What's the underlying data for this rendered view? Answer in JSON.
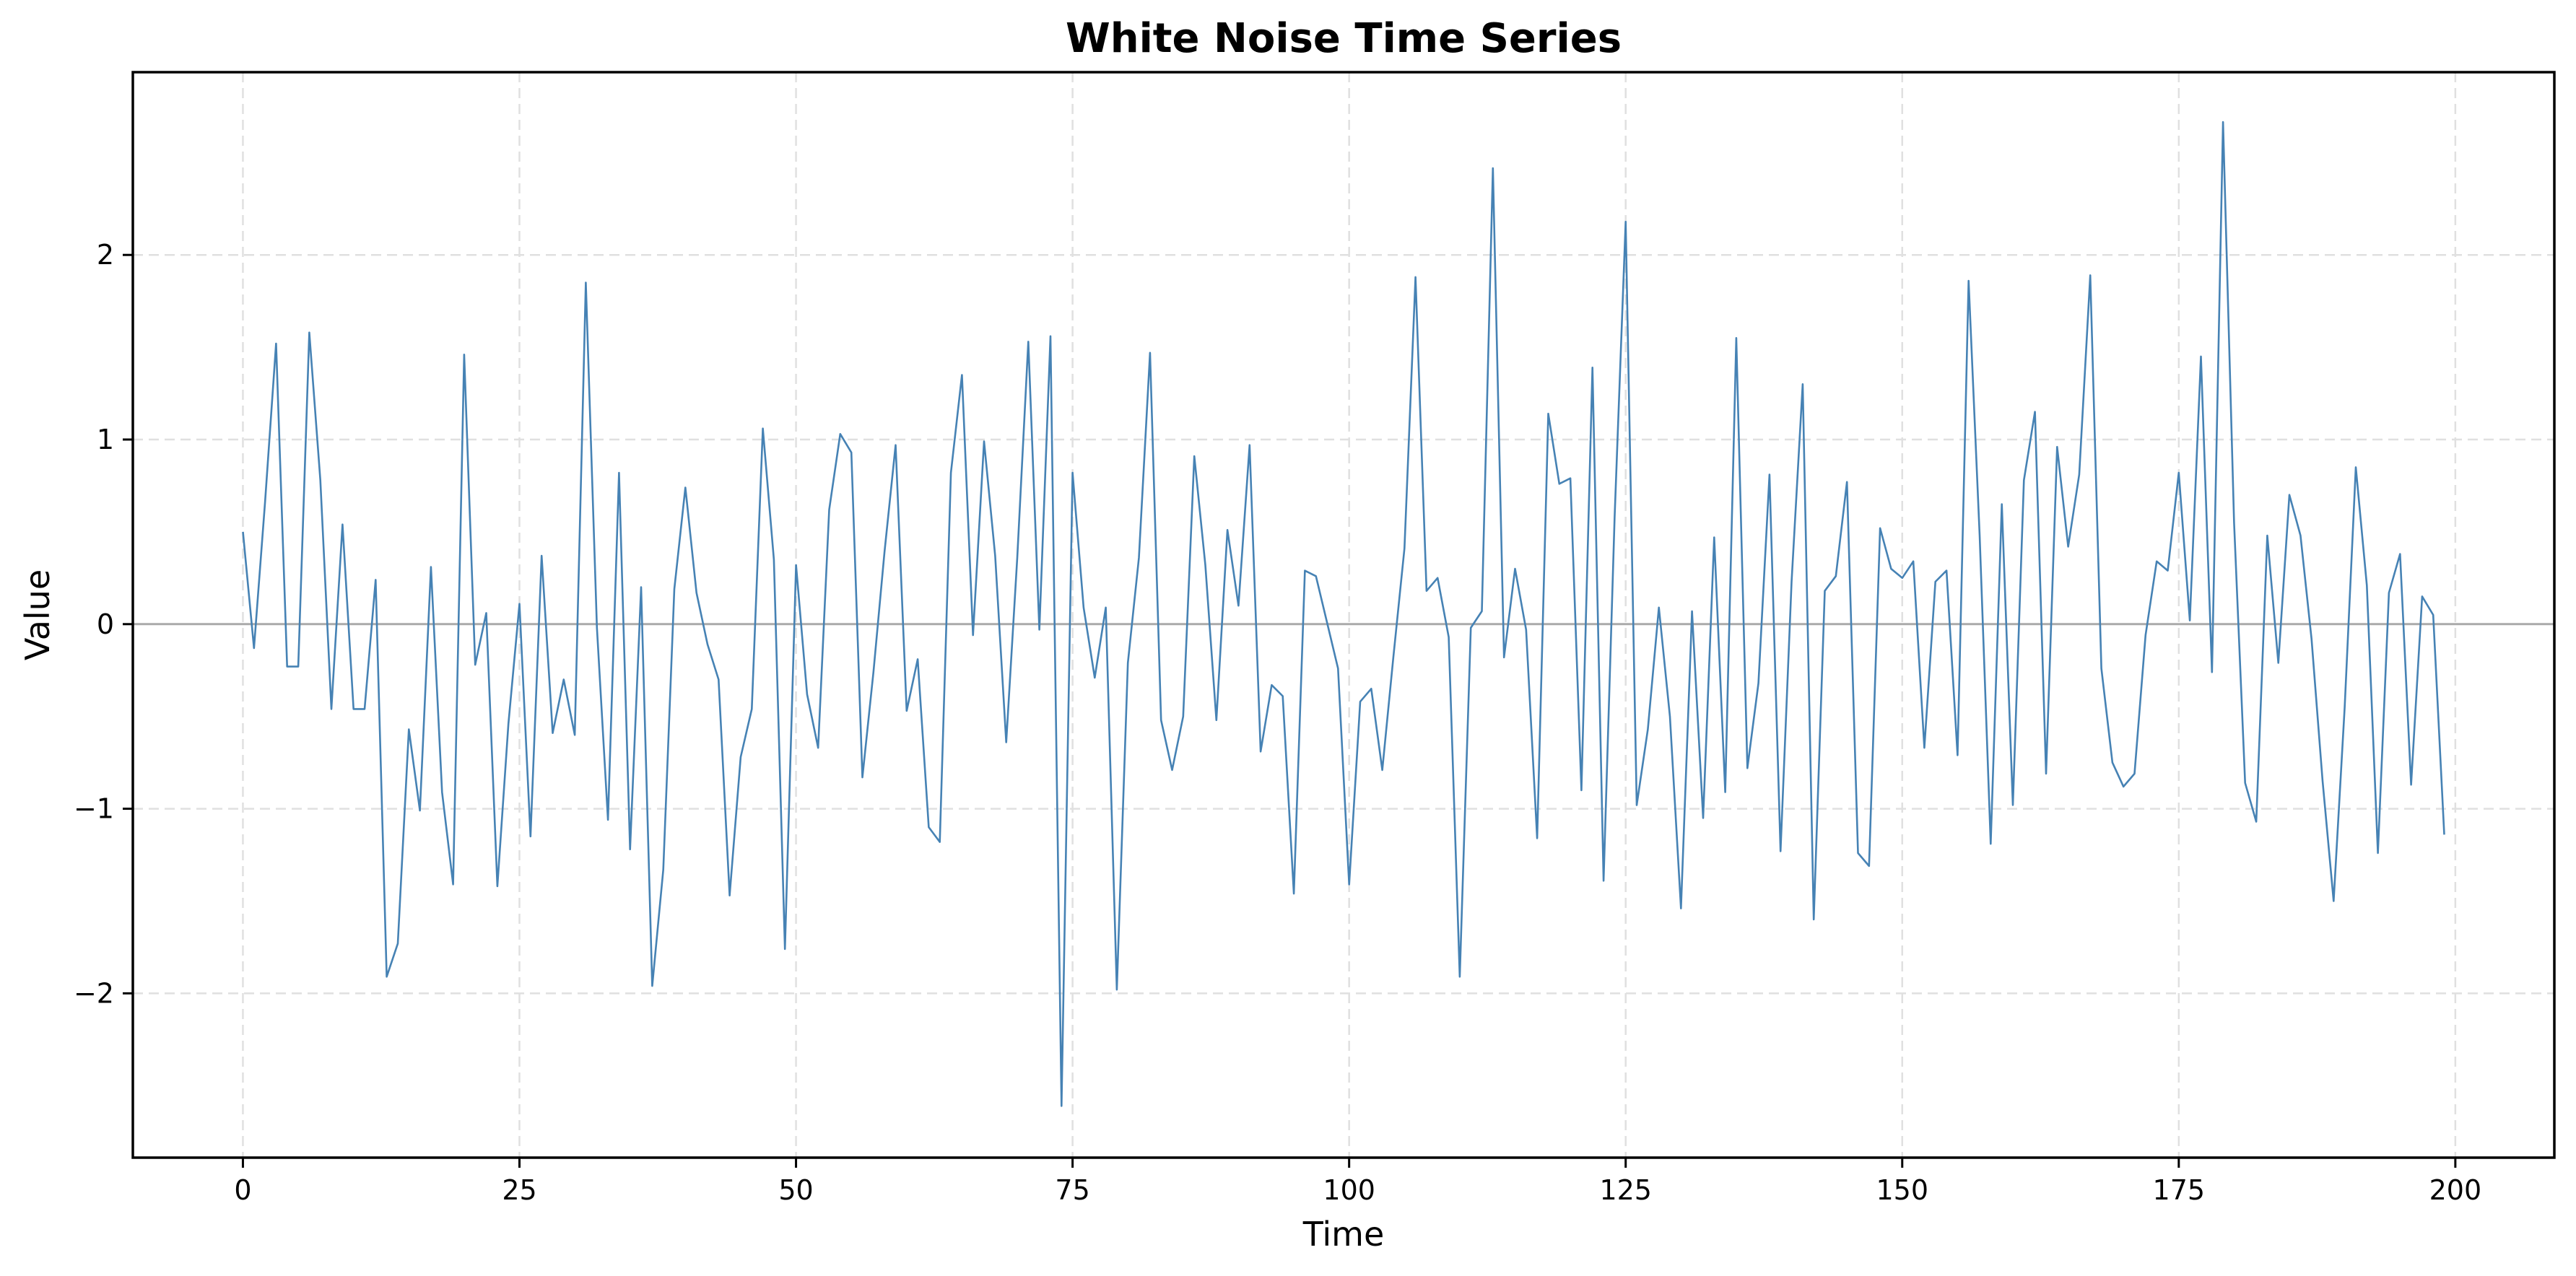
{
  "chart_data": {
    "type": "line",
    "title": "White Noise Time Series",
    "xlabel": "Time",
    "ylabel": "Value",
    "xlim": [
      -9.95,
      208.95
    ],
    "ylim": [
      -2.89,
      2.99
    ],
    "xticks": [
      0,
      25,
      50,
      75,
      100,
      125,
      150,
      175,
      200
    ],
    "yticks": [
      -2,
      -1,
      0,
      1,
      2
    ],
    "ytick_labels": [
      "−2",
      "−1",
      "0",
      "1",
      "2"
    ],
    "xtick_labels": [
      "0",
      "25",
      "50",
      "75",
      "100",
      "125",
      "150",
      "175",
      "200"
    ],
    "grid": true,
    "grid_style": "dashed",
    "reference_line": {
      "y": 0,
      "color": "#aaaaaa"
    },
    "legend": null,
    "line_color": "#4682b4",
    "series": [
      {
        "name": "White Noise",
        "x_start": 0,
        "x_step": 1,
        "values": [
          0.5,
          -0.13,
          0.66,
          1.52,
          -0.23,
          -0.23,
          1.58,
          0.78,
          -0.46,
          0.54,
          -0.46,
          -0.46,
          0.24,
          -1.91,
          -1.73,
          -0.57,
          -1.01,
          0.31,
          -0.91,
          -1.41,
          1.46,
          -0.22,
          0.06,
          -1.42,
          -0.54,
          0.11,
          -1.15,
          0.37,
          -0.59,
          -0.3,
          -0.6,
          1.85,
          -0.02,
          -1.06,
          0.82,
          -1.22,
          0.2,
          -1.96,
          -1.33,
          0.19,
          0.74,
          0.17,
          -0.11,
          -0.3,
          -1.47,
          -0.72,
          -0.46,
          1.06,
          0.35,
          -1.76,
          0.32,
          -0.38,
          -0.67,
          0.62,
          1.03,
          0.93,
          -0.83,
          -0.26,
          0.39,
          0.97,
          -0.47,
          -0.19,
          -1.1,
          -1.18,
          0.82,
          1.35,
          -0.06,
          0.99,
          0.37,
          -0.64,
          0.36,
          1.53,
          -0.03,
          1.56,
          -2.61,
          0.82,
          0.09,
          -0.29,
          0.09,
          -1.98,
          -0.21,
          0.36,
          1.47,
          -0.52,
          -0.79,
          -0.5,
          0.91,
          0.32,
          -0.52,
          0.51,
          0.1,
          0.97,
          -0.69,
          -0.33,
          -0.39,
          -1.46,
          0.29,
          0.26,
          0.01,
          -0.24,
          -1.41,
          -0.42,
          -0.35,
          -0.79,
          -0.18,
          0.41,
          1.88,
          0.18,
          0.25,
          -0.07,
          -1.91,
          -0.02,
          0.07,
          2.47,
          -0.18,
          0.3,
          -0.03,
          -1.16,
          1.14,
          0.76,
          0.79,
          -0.9,
          1.39,
          -1.39,
          0.58,
          2.18,
          -0.98,
          -0.57,
          0.09,
          -0.5,
          -1.54,
          0.07,
          -1.05,
          0.47,
          -0.91,
          1.55,
          -0.78,
          -0.32,
          0.81,
          -1.23,
          0.23,
          1.3,
          -1.6,
          0.18,
          0.26,
          0.77,
          -1.24,
          -1.31,
          0.52,
          0.3,
          0.25,
          0.34,
          -0.67,
          0.23,
          0.29,
          -0.71,
          1.86,
          0.48,
          -1.19,
          0.65,
          -0.98,
          0.78,
          1.15,
          -0.81,
          0.96,
          0.42,
          0.81,
          1.89,
          -0.24,
          -0.75,
          -0.88,
          -0.81,
          -0.06,
          0.34,
          0.29,
          0.82,
          0.02,
          1.45,
          -0.26,
          2.72,
          0.55,
          -0.86,
          -1.07,
          0.48,
          -0.21,
          0.7,
          0.48,
          -0.08,
          -0.85,
          -1.5,
          -0.45,
          0.85,
          0.21,
          -1.24,
          0.17,
          0.38,
          -0.87,
          0.15,
          0.05,
          -1.14
        ]
      }
    ]
  }
}
